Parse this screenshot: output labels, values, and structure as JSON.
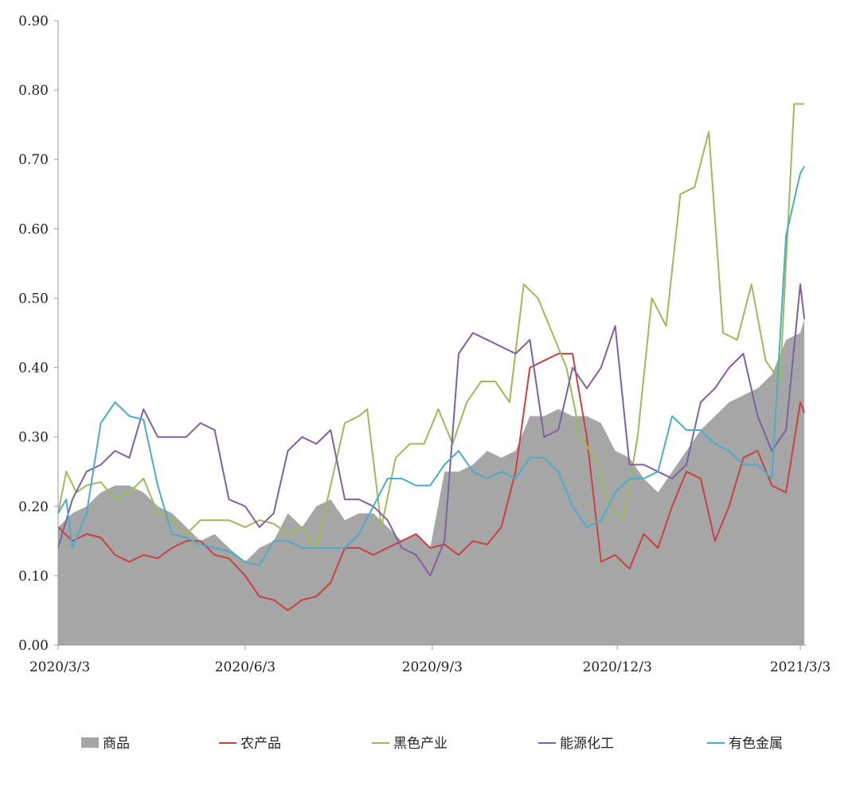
{
  "chart_data": {
    "type": "area",
    "title": "",
    "xlabel": "",
    "ylabel": "",
    "x_range": [
      "2020-03-03",
      "2021-03-05"
    ],
    "x_ticks": [
      "2020/3/3",
      "2020/6/3",
      "2020/9/3",
      "2020/12/3",
      "2021/3/3"
    ],
    "ylim": [
      0,
      0.9
    ],
    "y_ticks": [
      "0.00",
      "0.10",
      "0.20",
      "0.30",
      "0.40",
      "0.50",
      "0.60",
      "0.70",
      "0.80",
      "0.90"
    ],
    "grid": false,
    "legend_position": "bottom",
    "series": [
      {
        "name": "商品",
        "kind": "area",
        "color": "#a6a6a6",
        "points": [
          [
            "2020-03-03",
            0.17
          ],
          [
            "2020-03-10",
            0.19
          ],
          [
            "2020-03-17",
            0.2
          ],
          [
            "2020-03-24",
            0.22
          ],
          [
            "2020-03-31",
            0.23
          ],
          [
            "2020-04-07",
            0.23
          ],
          [
            "2020-04-14",
            0.22
          ],
          [
            "2020-04-21",
            0.2
          ],
          [
            "2020-04-28",
            0.19
          ],
          [
            "2020-05-05",
            0.17
          ],
          [
            "2020-05-12",
            0.15
          ],
          [
            "2020-05-19",
            0.16
          ],
          [
            "2020-05-26",
            0.14
          ],
          [
            "2020-06-03",
            0.12
          ],
          [
            "2020-06-10",
            0.14
          ],
          [
            "2020-06-17",
            0.15
          ],
          [
            "2020-06-24",
            0.19
          ],
          [
            "2020-07-01",
            0.17
          ],
          [
            "2020-07-08",
            0.2
          ],
          [
            "2020-07-15",
            0.21
          ],
          [
            "2020-07-22",
            0.18
          ],
          [
            "2020-07-29",
            0.19
          ],
          [
            "2020-08-05",
            0.19
          ],
          [
            "2020-08-12",
            0.17
          ],
          [
            "2020-08-19",
            0.15
          ],
          [
            "2020-08-26",
            0.16
          ],
          [
            "2020-09-02",
            0.14
          ],
          [
            "2020-09-09",
            0.25
          ],
          [
            "2020-09-16",
            0.25
          ],
          [
            "2020-09-23",
            0.26
          ],
          [
            "2020-09-30",
            0.28
          ],
          [
            "2020-10-07",
            0.27
          ],
          [
            "2020-10-14",
            0.28
          ],
          [
            "2020-10-21",
            0.33
          ],
          [
            "2020-10-28",
            0.33
          ],
          [
            "2020-11-04",
            0.34
          ],
          [
            "2020-11-11",
            0.33
          ],
          [
            "2020-11-18",
            0.33
          ],
          [
            "2020-11-25",
            0.32
          ],
          [
            "2020-12-02",
            0.28
          ],
          [
            "2020-12-09",
            0.27
          ],
          [
            "2020-12-16",
            0.24
          ],
          [
            "2020-12-23",
            0.22
          ],
          [
            "2020-12-30",
            0.25
          ],
          [
            "2021-01-06",
            0.28
          ],
          [
            "2021-01-13",
            0.31
          ],
          [
            "2021-01-20",
            0.33
          ],
          [
            "2021-01-27",
            0.35
          ],
          [
            "2021-02-03",
            0.36
          ],
          [
            "2021-02-10",
            0.37
          ],
          [
            "2021-02-17",
            0.39
          ],
          [
            "2021-02-24",
            0.44
          ],
          [
            "2021-03-03",
            0.45
          ],
          [
            "2021-03-05",
            0.47
          ]
        ]
      },
      {
        "name": "农产品",
        "kind": "line",
        "color": "#c94040",
        "points": [
          [
            "2020-03-03",
            0.17
          ],
          [
            "2020-03-10",
            0.15
          ],
          [
            "2020-03-17",
            0.16
          ],
          [
            "2020-03-24",
            0.155
          ],
          [
            "2020-03-31",
            0.13
          ],
          [
            "2020-04-07",
            0.12
          ],
          [
            "2020-04-14",
            0.13
          ],
          [
            "2020-04-21",
            0.125
          ],
          [
            "2020-04-28",
            0.14
          ],
          [
            "2020-05-05",
            0.15
          ],
          [
            "2020-05-12",
            0.15
          ],
          [
            "2020-05-19",
            0.13
          ],
          [
            "2020-05-26",
            0.125
          ],
          [
            "2020-06-03",
            0.1
          ],
          [
            "2020-06-10",
            0.07
          ],
          [
            "2020-06-17",
            0.065
          ],
          [
            "2020-06-24",
            0.05
          ],
          [
            "2020-07-01",
            0.065
          ],
          [
            "2020-07-08",
            0.07
          ],
          [
            "2020-07-15",
            0.09
          ],
          [
            "2020-07-22",
            0.14
          ],
          [
            "2020-07-29",
            0.14
          ],
          [
            "2020-08-05",
            0.13
          ],
          [
            "2020-08-12",
            0.14
          ],
          [
            "2020-08-19",
            0.15
          ],
          [
            "2020-08-26",
            0.16
          ],
          [
            "2020-09-02",
            0.14
          ],
          [
            "2020-09-09",
            0.145
          ],
          [
            "2020-09-16",
            0.13
          ],
          [
            "2020-09-23",
            0.15
          ],
          [
            "2020-09-30",
            0.145
          ],
          [
            "2020-10-07",
            0.17
          ],
          [
            "2020-10-14",
            0.25
          ],
          [
            "2020-10-21",
            0.4
          ],
          [
            "2020-10-28",
            0.41
          ],
          [
            "2020-11-04",
            0.42
          ],
          [
            "2020-11-11",
            0.42
          ],
          [
            "2020-11-18",
            0.3
          ],
          [
            "2020-11-25",
            0.12
          ],
          [
            "2020-12-02",
            0.13
          ],
          [
            "2020-12-09",
            0.11
          ],
          [
            "2020-12-16",
            0.16
          ],
          [
            "2020-12-23",
            0.14
          ],
          [
            "2020-12-30",
            0.2
          ],
          [
            "2021-01-06",
            0.25
          ],
          [
            "2021-01-13",
            0.24
          ],
          [
            "2021-01-20",
            0.15
          ],
          [
            "2021-01-27",
            0.2
          ],
          [
            "2021-02-03",
            0.27
          ],
          [
            "2021-02-10",
            0.28
          ],
          [
            "2021-02-17",
            0.23
          ],
          [
            "2021-02-24",
            0.22
          ],
          [
            "2021-03-03",
            0.35
          ],
          [
            "2021-03-05",
            0.335
          ]
        ]
      },
      {
        "name": "黑色产业",
        "kind": "line",
        "color": "#9bbb59",
        "points": [
          [
            "2020-03-03",
            0.19
          ],
          [
            "2020-03-07",
            0.25
          ],
          [
            "2020-03-12",
            0.22
          ],
          [
            "2020-03-17",
            0.23
          ],
          [
            "2020-03-24",
            0.235
          ],
          [
            "2020-03-31",
            0.21
          ],
          [
            "2020-04-07",
            0.22
          ],
          [
            "2020-04-14",
            0.24
          ],
          [
            "2020-04-21",
            0.19
          ],
          [
            "2020-04-28",
            0.18
          ],
          [
            "2020-05-05",
            0.16
          ],
          [
            "2020-05-12",
            0.18
          ],
          [
            "2020-05-19",
            0.18
          ],
          [
            "2020-05-26",
            0.18
          ],
          [
            "2020-06-03",
            0.17
          ],
          [
            "2020-06-10",
            0.18
          ],
          [
            "2020-06-17",
            0.175
          ],
          [
            "2020-06-24",
            0.16
          ],
          [
            "2020-07-01",
            0.17
          ],
          [
            "2020-07-08",
            0.14
          ],
          [
            "2020-07-15",
            0.23
          ],
          [
            "2020-07-22",
            0.32
          ],
          [
            "2020-07-29",
            0.33
          ],
          [
            "2020-08-02",
            0.34
          ],
          [
            "2020-08-09",
            0.17
          ],
          [
            "2020-08-16",
            0.27
          ],
          [
            "2020-08-23",
            0.29
          ],
          [
            "2020-08-30",
            0.29
          ],
          [
            "2020-09-06",
            0.34
          ],
          [
            "2020-09-13",
            0.29
          ],
          [
            "2020-09-20",
            0.35
          ],
          [
            "2020-09-27",
            0.38
          ],
          [
            "2020-10-04",
            0.38
          ],
          [
            "2020-10-11",
            0.35
          ],
          [
            "2020-10-18",
            0.52
          ],
          [
            "2020-10-25",
            0.5
          ],
          [
            "2020-11-01",
            0.45
          ],
          [
            "2020-11-08",
            0.4
          ],
          [
            "2020-11-15",
            0.3
          ],
          [
            "2020-11-22",
            0.27
          ],
          [
            "2020-11-29",
            0.2
          ],
          [
            "2020-12-06",
            0.18
          ],
          [
            "2020-12-13",
            0.3
          ],
          [
            "2020-12-20",
            0.5
          ],
          [
            "2020-12-27",
            0.46
          ],
          [
            "2021-01-03",
            0.65
          ],
          [
            "2021-01-10",
            0.66
          ],
          [
            "2021-01-17",
            0.74
          ],
          [
            "2021-01-24",
            0.45
          ],
          [
            "2021-01-31",
            0.44
          ],
          [
            "2021-02-07",
            0.52
          ],
          [
            "2021-02-14",
            0.41
          ],
          [
            "2021-02-21",
            0.38
          ],
          [
            "2021-02-28",
            0.78
          ],
          [
            "2021-03-05",
            0.78
          ]
        ]
      },
      {
        "name": "能源化工",
        "kind": "line",
        "color": "#7f61a3",
        "points": [
          [
            "2020-03-03",
            0.14
          ],
          [
            "2020-03-10",
            0.21
          ],
          [
            "2020-03-17",
            0.25
          ],
          [
            "2020-03-24",
            0.26
          ],
          [
            "2020-03-31",
            0.28
          ],
          [
            "2020-04-07",
            0.27
          ],
          [
            "2020-04-14",
            0.34
          ],
          [
            "2020-04-21",
            0.3
          ],
          [
            "2020-04-28",
            0.3
          ],
          [
            "2020-05-05",
            0.3
          ],
          [
            "2020-05-12",
            0.32
          ],
          [
            "2020-05-19",
            0.31
          ],
          [
            "2020-05-26",
            0.21
          ],
          [
            "2020-06-03",
            0.2
          ],
          [
            "2020-06-10",
            0.17
          ],
          [
            "2020-06-17",
            0.19
          ],
          [
            "2020-06-24",
            0.28
          ],
          [
            "2020-07-01",
            0.3
          ],
          [
            "2020-07-08",
            0.29
          ],
          [
            "2020-07-15",
            0.31
          ],
          [
            "2020-07-22",
            0.21
          ],
          [
            "2020-07-29",
            0.21
          ],
          [
            "2020-08-05",
            0.2
          ],
          [
            "2020-08-12",
            0.18
          ],
          [
            "2020-08-19",
            0.14
          ],
          [
            "2020-08-26",
            0.13
          ],
          [
            "2020-09-02",
            0.1
          ],
          [
            "2020-09-09",
            0.15
          ],
          [
            "2020-09-16",
            0.42
          ],
          [
            "2020-09-23",
            0.45
          ],
          [
            "2020-09-30",
            0.44
          ],
          [
            "2020-10-07",
            0.43
          ],
          [
            "2020-10-14",
            0.42
          ],
          [
            "2020-10-21",
            0.44
          ],
          [
            "2020-10-28",
            0.3
          ],
          [
            "2020-11-04",
            0.31
          ],
          [
            "2020-11-11",
            0.4
          ],
          [
            "2020-11-18",
            0.37
          ],
          [
            "2020-11-25",
            0.4
          ],
          [
            "2020-12-02",
            0.46
          ],
          [
            "2020-12-09",
            0.26
          ],
          [
            "2020-12-16",
            0.26
          ],
          [
            "2020-12-23",
            0.25
          ],
          [
            "2020-12-30",
            0.24
          ],
          [
            "2021-01-06",
            0.26
          ],
          [
            "2021-01-13",
            0.35
          ],
          [
            "2021-01-20",
            0.37
          ],
          [
            "2021-01-27",
            0.4
          ],
          [
            "2021-02-03",
            0.42
          ],
          [
            "2021-02-10",
            0.33
          ],
          [
            "2021-02-17",
            0.28
          ],
          [
            "2021-02-24",
            0.31
          ],
          [
            "2021-03-03",
            0.52
          ],
          [
            "2021-03-05",
            0.47
          ]
        ]
      },
      {
        "name": "有色金属",
        "kind": "line",
        "color": "#4bacc6",
        "points": [
          [
            "2020-03-03",
            0.19
          ],
          [
            "2020-03-07",
            0.21
          ],
          [
            "2020-03-10",
            0.14
          ],
          [
            "2020-03-17",
            0.19
          ],
          [
            "2020-03-24",
            0.32
          ],
          [
            "2020-03-31",
            0.35
          ],
          [
            "2020-04-07",
            0.33
          ],
          [
            "2020-04-14",
            0.325
          ],
          [
            "2020-04-21",
            0.23
          ],
          [
            "2020-04-28",
            0.16
          ],
          [
            "2020-05-05",
            0.155
          ],
          [
            "2020-05-12",
            0.145
          ],
          [
            "2020-05-19",
            0.14
          ],
          [
            "2020-05-26",
            0.135
          ],
          [
            "2020-06-03",
            0.12
          ],
          [
            "2020-06-10",
            0.115
          ],
          [
            "2020-06-17",
            0.15
          ],
          [
            "2020-06-24",
            0.15
          ],
          [
            "2020-07-01",
            0.14
          ],
          [
            "2020-07-08",
            0.14
          ],
          [
            "2020-07-15",
            0.14
          ],
          [
            "2020-07-22",
            0.14
          ],
          [
            "2020-07-29",
            0.16
          ],
          [
            "2020-08-05",
            0.2
          ],
          [
            "2020-08-12",
            0.24
          ],
          [
            "2020-08-19",
            0.24
          ],
          [
            "2020-08-26",
            0.23
          ],
          [
            "2020-09-02",
            0.23
          ],
          [
            "2020-09-09",
            0.26
          ],
          [
            "2020-09-16",
            0.28
          ],
          [
            "2020-09-23",
            0.25
          ],
          [
            "2020-09-30",
            0.24
          ],
          [
            "2020-10-07",
            0.25
          ],
          [
            "2020-10-14",
            0.24
          ],
          [
            "2020-10-21",
            0.27
          ],
          [
            "2020-10-28",
            0.27
          ],
          [
            "2020-11-04",
            0.25
          ],
          [
            "2020-11-11",
            0.2
          ],
          [
            "2020-11-18",
            0.17
          ],
          [
            "2020-11-25",
            0.18
          ],
          [
            "2020-12-02",
            0.22
          ],
          [
            "2020-12-09",
            0.24
          ],
          [
            "2020-12-16",
            0.24
          ],
          [
            "2020-12-23",
            0.25
          ],
          [
            "2020-12-30",
            0.33
          ],
          [
            "2021-01-06",
            0.31
          ],
          [
            "2021-01-13",
            0.31
          ],
          [
            "2021-01-20",
            0.29
          ],
          [
            "2021-01-27",
            0.28
          ],
          [
            "2021-02-03",
            0.26
          ],
          [
            "2021-02-10",
            0.26
          ],
          [
            "2021-02-17",
            0.24
          ],
          [
            "2021-02-24",
            0.59
          ],
          [
            "2021-03-03",
            0.68
          ],
          [
            "2021-03-05",
            0.69
          ]
        ]
      }
    ]
  }
}
